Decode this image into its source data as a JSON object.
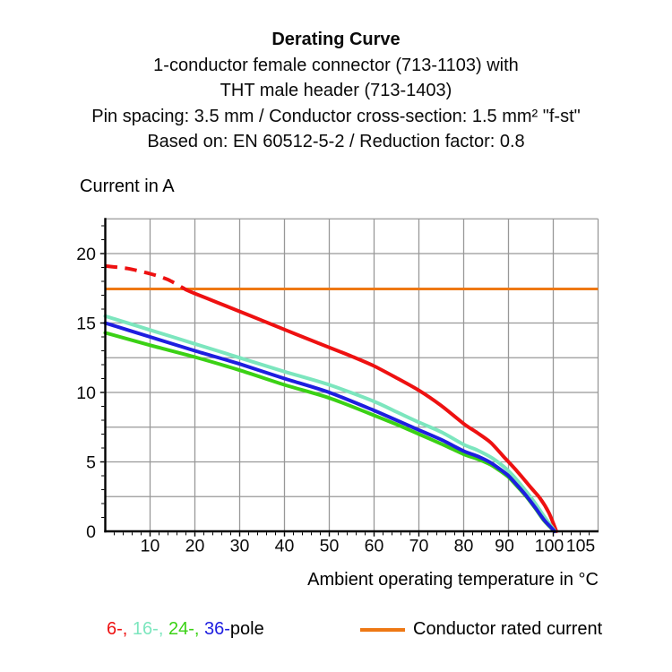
{
  "header": {
    "title": "Derating Curve",
    "subtitle_lines": [
      "1-conductor female connector (713-1103) with",
      "THT male header (713-1403)",
      "Pin spacing: 3.5 mm / Conductor cross-section: 1.5 mm² \"f-st\"",
      "Based on: EN 60512-5-2 / Reduction factor: 0.8"
    ]
  },
  "chart_data": {
    "type": "line",
    "ylabel": "Current in A",
    "xlabel": "Ambient operating temperature in °C",
    "xlim": [
      0,
      110
    ],
    "ylim": [
      0,
      22.5
    ],
    "x_tick_labels": [
      10,
      20,
      30,
      40,
      50,
      60,
      70,
      80,
      90,
      100,
      105
    ],
    "y_tick_labels": [
      0,
      5,
      10,
      15,
      20
    ],
    "x_grid_step": 10,
    "y_grid_step": 2.5,
    "x_minor_tick_step": 2,
    "y_minor_tick_step": 1,
    "grid_color": "#989898",
    "axis_color": "#000000",
    "rated_current": {
      "value": 17.45,
      "color": "#ee7814",
      "label": "Conductor rated current"
    },
    "series": [
      {
        "name": "6-pole",
        "color": "#ee1111",
        "dashed_until": 18,
        "points": [
          [
            0,
            19.1
          ],
          [
            5,
            18.92
          ],
          [
            10,
            18.55
          ],
          [
            14,
            18.12
          ],
          [
            18,
            17.4
          ],
          [
            20,
            17.12
          ],
          [
            25,
            16.48
          ],
          [
            30,
            15.83
          ],
          [
            35,
            15.18
          ],
          [
            40,
            14.53
          ],
          [
            45,
            13.88
          ],
          [
            50,
            13.24
          ],
          [
            55,
            12.6
          ],
          [
            60,
            11.9
          ],
          [
            65,
            11.05
          ],
          [
            70,
            10.15
          ],
          [
            75,
            9.05
          ],
          [
            80,
            7.75
          ],
          [
            83,
            7.1
          ],
          [
            86,
            6.4
          ],
          [
            89,
            5.35
          ],
          [
            92,
            4.3
          ],
          [
            95,
            3.15
          ],
          [
            97,
            2.4
          ],
          [
            99,
            1.35
          ],
          [
            100.7,
            0
          ]
        ]
      },
      {
        "name": "16-pole",
        "color": "#7ce6be",
        "points": [
          [
            0,
            15.5
          ],
          [
            10,
            14.5
          ],
          [
            20,
            13.5
          ],
          [
            30,
            12.5
          ],
          [
            40,
            11.5
          ],
          [
            50,
            10.55
          ],
          [
            60,
            9.35
          ],
          [
            65,
            8.6
          ],
          [
            70,
            7.85
          ],
          [
            75,
            7.15
          ],
          [
            80,
            6.25
          ],
          [
            83,
            5.85
          ],
          [
            86,
            5.35
          ],
          [
            88,
            4.9
          ],
          [
            90,
            4.35
          ],
          [
            92,
            3.65
          ],
          [
            94,
            2.85
          ],
          [
            96,
            2.0
          ],
          [
            98,
            1.05
          ],
          [
            100.4,
            0
          ]
        ]
      },
      {
        "name": "24-pole",
        "color": "#3bd115",
        "points": [
          [
            0,
            14.3
          ],
          [
            10,
            13.4
          ],
          [
            20,
            12.55
          ],
          [
            30,
            11.6
          ],
          [
            40,
            10.55
          ],
          [
            50,
            9.6
          ],
          [
            60,
            8.35
          ],
          [
            65,
            7.7
          ],
          [
            70,
            7.0
          ],
          [
            75,
            6.3
          ],
          [
            80,
            5.55
          ],
          [
            83,
            5.22
          ],
          [
            86,
            4.8
          ],
          [
            88,
            4.38
          ],
          [
            90,
            3.9
          ],
          [
            92,
            3.22
          ],
          [
            94,
            2.5
          ],
          [
            96,
            1.65
          ],
          [
            98,
            0.75
          ],
          [
            100.25,
            0
          ]
        ]
      },
      {
        "name": "36-pole",
        "color": "#1e1ee0",
        "points": [
          [
            0,
            15.0
          ],
          [
            10,
            14.0
          ],
          [
            20,
            13.0
          ],
          [
            30,
            12.05
          ],
          [
            40,
            11.0
          ],
          [
            50,
            10.0
          ],
          [
            60,
            8.7
          ],
          [
            65,
            8.0
          ],
          [
            70,
            7.3
          ],
          [
            75,
            6.6
          ],
          [
            80,
            5.78
          ],
          [
            83,
            5.42
          ],
          [
            86,
            4.95
          ],
          [
            88,
            4.5
          ],
          [
            90,
            4.0
          ],
          [
            92,
            3.3
          ],
          [
            94,
            2.55
          ],
          [
            96,
            1.7
          ],
          [
            98,
            0.8
          ],
          [
            100.3,
            0
          ]
        ]
      }
    ]
  },
  "legend": {
    "pole_items": [
      {
        "label": "6-",
        "color": "#ee1111"
      },
      {
        "label": "16-",
        "color": "#7ce6be"
      },
      {
        "label": "24-",
        "color": "#3bd115"
      },
      {
        "label": "36-",
        "color": "#1e1ee0"
      }
    ],
    "separator": ", ",
    "suffix": "pole",
    "rated_label": "Conductor rated current"
  }
}
